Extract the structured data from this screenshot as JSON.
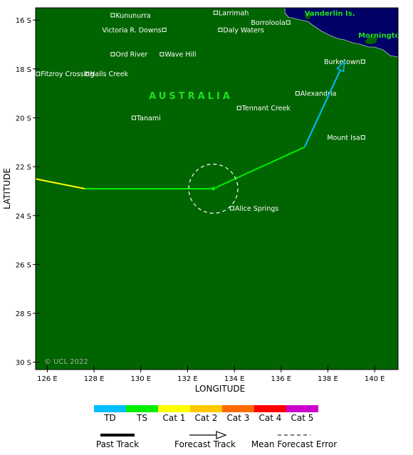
{
  "axes": {
    "xlabel": "LONGITUDE",
    "ylabel": "LATITUDE",
    "lon_range": [
      125.5,
      141.0
    ],
    "lat_range": [
      -30.3,
      -15.5
    ],
    "lon_ticks": [
      {
        "value": 126,
        "label": "126 E"
      },
      {
        "value": 128,
        "label": "128 E"
      },
      {
        "value": 130,
        "label": "130 E"
      },
      {
        "value": 132,
        "label": "132 E"
      },
      {
        "value": 134,
        "label": "134 E"
      },
      {
        "value": 136,
        "label": "136 E"
      },
      {
        "value": 138,
        "label": "138 E"
      },
      {
        "value": 140,
        "label": "140 E"
      }
    ],
    "lat_ticks": [
      {
        "value": -16,
        "label": "16 S"
      },
      {
        "value": -18,
        "label": "18 S"
      },
      {
        "value": -20,
        "label": "20 S"
      },
      {
        "value": -22,
        "label": "22 S"
      },
      {
        "value": -24,
        "label": "24 S"
      },
      {
        "value": -26,
        "label": "26 S"
      },
      {
        "value": -28,
        "label": "28 S"
      },
      {
        "value": -30,
        "label": "30 S"
      }
    ]
  },
  "colors": {
    "land": "#006400",
    "water": "#000066",
    "TD": "#00bfff",
    "TS": "#00ee00",
    "Cat 1": "#ffff00",
    "Cat 2": "#ffc800",
    "Cat 3": "#ff6a00",
    "Cat 4": "#ff0000",
    "Cat 5": "#cc00cc"
  },
  "places": [
    {
      "name": "Kununurra",
      "lon": 128.8,
      "lat": -15.8
    },
    {
      "name": "Larrimah",
      "lon": 133.2,
      "lat": -15.7
    },
    {
      "name": "Borroloola",
      "lon": 136.3,
      "lat": -16.1
    },
    {
      "name": "Victoria R. Downs",
      "lon": 131.0,
      "lat": -16.4
    },
    {
      "name": "Daly Waters",
      "lon": 133.4,
      "lat": -16.4
    },
    {
      "name": "Ord River",
      "lon": 128.8,
      "lat": -17.4
    },
    {
      "name": "Wave Hill",
      "lon": 130.9,
      "lat": -17.4
    },
    {
      "name": "Halls Creek",
      "lon": 127.7,
      "lat": -18.2
    },
    {
      "name": "Fitzroy Crossing",
      "lon": 125.6,
      "lat": -18.2
    },
    {
      "name": "Burketown",
      "lon": 139.5,
      "lat": -17.7
    },
    {
      "name": "Alexandria",
      "lon": 136.7,
      "lat": -19.0
    },
    {
      "name": "Tennant Creek",
      "lon": 134.2,
      "lat": -19.6
    },
    {
      "name": "Tanami",
      "lon": 129.7,
      "lat": -20.0
    },
    {
      "name": "Mount Isa",
      "lon": 139.5,
      "lat": -20.8
    },
    {
      "name": "Alice Springs",
      "lon": 133.9,
      "lat": -23.7
    }
  ],
  "region_label": "AUSTRALIA",
  "water_labels": [
    {
      "name": "Vanderlin Is.",
      "lon": 137.0,
      "lat": -15.7
    },
    {
      "name": "Mornington",
      "lon": 139.3,
      "lat": -16.6
    }
  ],
  "copyright": "© UCL 2022",
  "track": {
    "past": [
      {
        "lon": 125.5,
        "lat": -22.5,
        "category": "Cat 1"
      },
      {
        "lon": 127.6,
        "lat": -22.9,
        "category": "TS"
      },
      {
        "lon": 133.1,
        "lat": -22.9,
        "category": "TS"
      }
    ],
    "forecast": [
      {
        "lon": 133.1,
        "lat": -22.9,
        "category": "TS"
      },
      {
        "lon": 137.0,
        "lat": -21.2,
        "category": "TD"
      },
      {
        "lon": 138.7,
        "lat": -17.7,
        "category": "TD"
      }
    ],
    "error_circle": {
      "lon": 133.1,
      "lat": -22.9,
      "radius_deg": 1.05
    }
  },
  "legend": {
    "categories": [
      "TD",
      "TS",
      "Cat 1",
      "Cat 2",
      "Cat 3",
      "Cat 4",
      "Cat 5"
    ],
    "past_track_label": "Past Track",
    "forecast_track_label": "Forecast Track",
    "mean_error_label": "Mean Forecast Error"
  }
}
